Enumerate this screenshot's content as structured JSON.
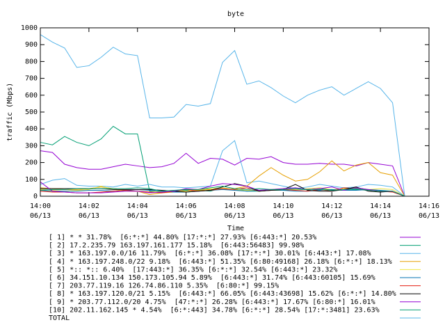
{
  "chart_data": {
    "type": "line",
    "title": "byte",
    "y_label": "traffic (Mbps)",
    "x_label": "Time",
    "xlim": [
      0,
      16
    ],
    "ylim": [
      0,
      1000
    ],
    "yticks": [
      0,
      100,
      200,
      300,
      400,
      500,
      600,
      700,
      800,
      900,
      1000
    ],
    "xticks": [
      {
        "value": 0,
        "label": [
          "14:00",
          "06/13"
        ]
      },
      {
        "value": 2,
        "label": [
          "14:02",
          "06/13"
        ]
      },
      {
        "value": 4,
        "label": [
          "14:04",
          "06/13"
        ]
      },
      {
        "value": 6,
        "label": [
          "14:06",
          "06/13"
        ]
      },
      {
        "value": 8,
        "label": [
          "14:08",
          "06/13"
        ]
      },
      {
        "value": 10,
        "label": [
          "14:10",
          "06/13"
        ]
      },
      {
        "value": 12,
        "label": [
          "14:12",
          "06/13"
        ]
      },
      {
        "value": 14,
        "label": [
          "14:14",
          "06/13"
        ]
      },
      {
        "value": 16,
        "label": [
          "14:16",
          "06/13"
        ]
      }
    ],
    "x": [
      0,
      0.5,
      1,
      1.5,
      2,
      2.5,
      3,
      3.5,
      4,
      4.5,
      5,
      5.5,
      6,
      6.5,
      7,
      7.5,
      8,
      8.5,
      9,
      9.5,
      10,
      10.5,
      11,
      11.5,
      12,
      12.5,
      13,
      13.5,
      14,
      14.5,
      15
    ],
    "series": [
      {
        "name": "[ 1] * * 31.78%  [6:*:*] 44.80% [17:*:*] 27.93% [6:443:*] 20.53%",
        "color": "#9400d3",
        "values": [
          270,
          260,
          190,
          170,
          160,
          160,
          175,
          190,
          180,
          170,
          175,
          195,
          255,
          195,
          225,
          220,
          185,
          225,
          220,
          235,
          200,
          190,
          190,
          195,
          190,
          190,
          180,
          200,
          190,
          180,
          0
        ]
      },
      {
        "name": "[ 2] 17.2.235.79 163.197.161.177 15.18%  [6:443:56483] 99.98%",
        "color": "#009e73",
        "values": [
          320,
          305,
          355,
          320,
          300,
          340,
          415,
          370,
          370,
          30,
          25,
          30,
          35,
          35,
          30,
          50,
          40,
          30,
          30,
          35,
          35,
          40,
          40,
          45,
          40,
          35,
          40,
          35,
          30,
          30,
          0
        ]
      },
      {
        "name": "[ 3] * 163.197.0.0/16 11.79%  [6:*:*] 36.08% [17:*:*] 30.01% [6:443:*] 17.08%",
        "color": "#56b4e9",
        "values": [
          70,
          95,
          105,
          65,
          60,
          60,
          55,
          70,
          60,
          70,
          55,
          55,
          50,
          55,
          60,
          270,
          330,
          80,
          90,
          75,
          60,
          45,
          55,
          70,
          60,
          50,
          55,
          70,
          65,
          55,
          0
        ]
      },
      {
        "name": "[ 4] * 163.197.248.0/22 9.18%  [6:443:*] 51.35% [6:80:49168] 26.18% [6:*:*] 18.13%",
        "color": "#e69f00",
        "values": [
          50,
          45,
          40,
          40,
          45,
          55,
          45,
          30,
          30,
          10,
          20,
          25,
          30,
          35,
          40,
          40,
          45,
          60,
          120,
          170,
          125,
          90,
          100,
          145,
          210,
          150,
          185,
          200,
          140,
          125,
          0
        ]
      },
      {
        "name": "[ 5] *:: *:: 6.40%  [17:443:*] 36.35% [6:*:*] 32.54% [6:443:*] 23.32%",
        "color": "#f0e442",
        "values": [
          40,
          35,
          30,
          35,
          40,
          60,
          40,
          35,
          30,
          25,
          30,
          35,
          30,
          40,
          45,
          50,
          40,
          35,
          35,
          40,
          45,
          40,
          45,
          50,
          40,
          45,
          50,
          40,
          45,
          40,
          0
        ]
      },
      {
        "name": "[ 6] 34.151.10.134 150.173.105.94 5.89%  [6:443:*] 31.74% [6:443:60105] 15.69%",
        "color": "#0072b2",
        "values": [
          35,
          30,
          30,
          30,
          35,
          35,
          30,
          35,
          40,
          35,
          30,
          25,
          25,
          30,
          35,
          40,
          35,
          30,
          35,
          40,
          35,
          30,
          30,
          35,
          40,
          35,
          35,
          40,
          35,
          30,
          0
        ]
      },
      {
        "name": "[ 7] 203.77.119.16 126.74.86.110 5.35%  [6:80:*] 99.15%",
        "color": "#e51e10",
        "values": [
          30,
          25,
          25,
          20,
          20,
          25,
          30,
          35,
          30,
          25,
          20,
          30,
          40,
          30,
          35,
          45,
          40,
          50,
          30,
          35,
          40,
          35,
          30,
          40,
          30,
          50,
          45,
          35,
          30,
          25,
          0
        ]
      },
      {
        "name": "[ 8] * 163.197.120.0/21 5.15%  [6:443:*] 66.05% [6:443:43698] 15.62% [6:*:*] 14.80%",
        "color": "#000000",
        "values": [
          45,
          45,
          45,
          45,
          45,
          45,
          40,
          40,
          40,
          40,
          35,
          30,
          25,
          30,
          35,
          55,
          75,
          60,
          30,
          35,
          40,
          70,
          35,
          30,
          30,
          40,
          55,
          30,
          25,
          30,
          0
        ]
      },
      {
        "name": "[ 9] * 203.77.112.0/20 4.75%  [47:*:*] 26.28% [6:443:*] 17.67% [6:80:*] 16.01%",
        "color": "#9400d3",
        "values": [
          85,
          30,
          25,
          20,
          20,
          20,
          25,
          30,
          30,
          20,
          25,
          30,
          45,
          40,
          60,
          75,
          70,
          60,
          35,
          40,
          45,
          50,
          40,
          45,
          55,
          35,
          50,
          40,
          30,
          30,
          0
        ]
      },
      {
        "name": "[10] 202.11.162.145 * 4.54%  [6:*:443] 34.78% [6:*:*] 28.54% [17:*:3481] 23.63%",
        "color": "#009e73",
        "values": [
          35,
          40,
          40,
          45,
          45,
          45,
          45,
          45,
          50,
          45,
          30,
          35,
          40,
          40,
          50,
          60,
          45,
          40,
          45,
          40,
          40,
          45,
          40,
          40,
          35,
          40,
          45,
          35,
          30,
          30,
          0
        ]
      },
      {
        "name": "TOTAL",
        "color": "#56b4e9",
        "values": [
          960,
          915,
          880,
          765,
          775,
          825,
          885,
          845,
          835,
          465,
          465,
          470,
          545,
          535,
          550,
          795,
          865,
          665,
          685,
          645,
          595,
          555,
          600,
          630,
          650,
          600,
          640,
          680,
          640,
          555,
          0
        ]
      }
    ]
  }
}
